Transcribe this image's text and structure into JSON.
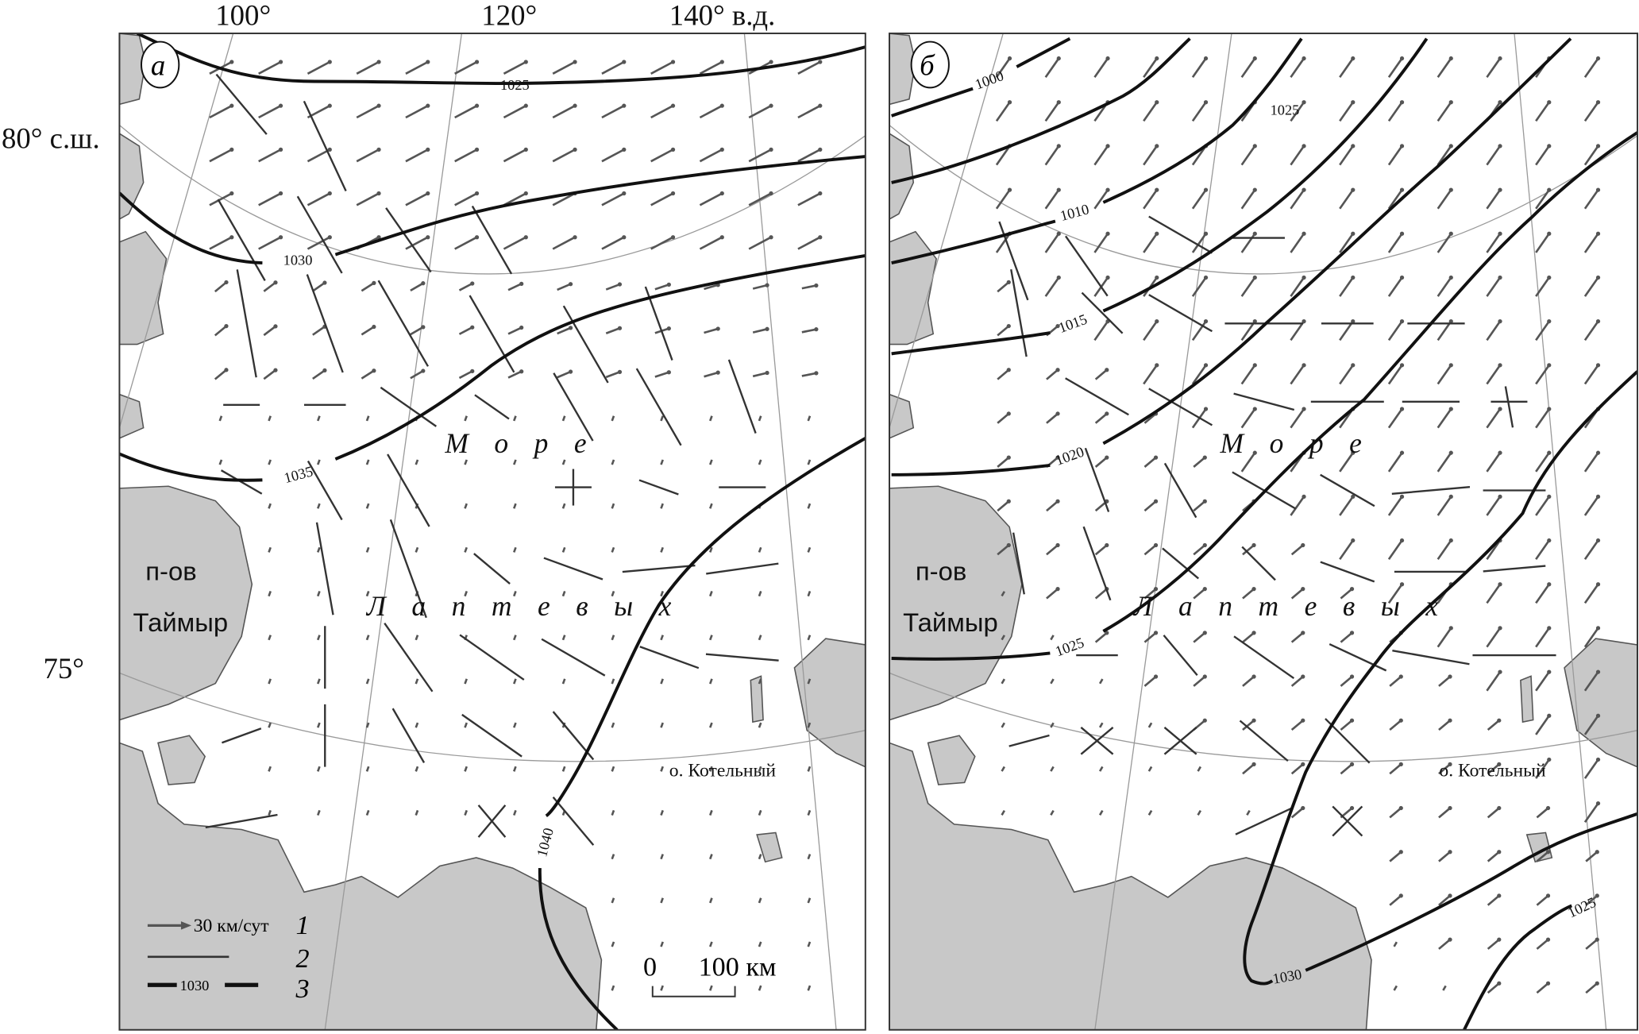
{
  "axes": {
    "lon_labels": [
      "100°",
      "120°",
      "140° в.д."
    ],
    "lat_labels": [
      "80° с.ш.",
      "75°"
    ]
  },
  "panels": [
    {
      "letter": "а",
      "isobar_labels": [
        "1025",
        "1030",
        "1035",
        "1040"
      ],
      "sea_label_1": "М о р е",
      "sea_label_2": "Л а п т е в ы х",
      "peninsula": [
        "п-ов",
        "Таймыр"
      ],
      "island": "о. Котельный"
    },
    {
      "letter": "б",
      "isobar_labels": [
        "1000",
        "1010",
        "1015",
        "1020",
        "1025",
        "1025",
        "1030",
        "1025"
      ],
      "sea_label_1": "М о р е",
      "sea_label_2": "Л а п т е в ы х",
      "peninsula": [
        "п-ов",
        "Таймыр"
      ],
      "island": "о. Котельный"
    }
  ],
  "legend": {
    "items": [
      {
        "num": "1",
        "text": "30 км/сут",
        "symbol": "drift-arrow"
      },
      {
        "num": "2",
        "text": "",
        "symbol": "line-segment"
      },
      {
        "num": "3",
        "text": "1030",
        "symbol": "isobar"
      }
    ],
    "scale": {
      "zero": "0",
      "label": "100 км"
    }
  },
  "colors": {
    "land": "#c8c8c8",
    "sea": "#ffffff",
    "isobar": "#111111",
    "arrow": "#555555"
  }
}
